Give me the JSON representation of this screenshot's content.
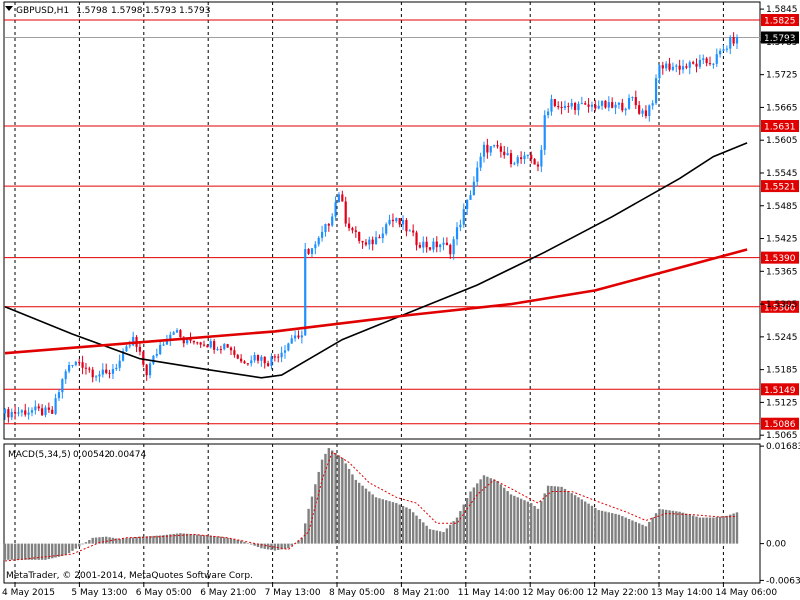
{
  "header": {
    "symbol": "GBPUSD,H1",
    "o": "1.5798",
    "h": "1.5798",
    "l": "1.5793",
    "c": "1.5793"
  },
  "macd_header": {
    "name": "MACD(5,34,5)",
    "value": "0.00542",
    "signal": "0.00474"
  },
  "copyright": "MetaTrader, © 2001-2014, MetaQuotes Software Corp.",
  "colors": {
    "bull": "#1e90ff",
    "bear": "#e0001a",
    "level": "#e00000",
    "ma_fast": "#000000",
    "ma_slow": "#e00000",
    "macd_hist": "#808080",
    "macd_signal": "#e00000",
    "price_line": "#a0a0a0"
  },
  "chart_data": [
    {
      "type": "candlestick",
      "title": "GBPUSD,H1",
      "ylim": [
        1.5058,
        1.5858
      ],
      "y_ticks": [
        "1.5845",
        "1.5785",
        "1.5725",
        "1.5665",
        "1.5605",
        "1.5545",
        "1.5485",
        "1.5425",
        "1.5365",
        "1.5305",
        "1.5245",
        "1.5185",
        "1.5125",
        "1.5065"
      ],
      "x_ticks": [
        "4 May 2015",
        "5 May 13:00",
        "6 May 05:00",
        "6 May 21:00",
        "7 May 13:00",
        "8 May 05:00",
        "8 May 21:00",
        "11 May 14:00",
        "12 May 06:00",
        "12 May 22:00",
        "13 May 14:00",
        "14 May 06:00"
      ],
      "current_price": "1.5793",
      "horizontal_levels": [
        "1.5825",
        "1.5631",
        "1.5521",
        "1.5390",
        "1.5300",
        "1.5149",
        "1.5086"
      ],
      "price_path": [
        [
          0,
          1.5105
        ],
        [
          8,
          1.511
        ],
        [
          14,
          1.5105
        ],
        [
          18,
          1.5185
        ],
        [
          22,
          1.52
        ],
        [
          26,
          1.518
        ],
        [
          30,
          1.5175
        ],
        [
          34,
          1.52
        ],
        [
          38,
          1.524
        ],
        [
          42,
          1.518
        ],
        [
          46,
          1.523
        ],
        [
          50,
          1.526
        ],
        [
          53,
          1.5235
        ],
        [
          56,
          1.524
        ],
        [
          62,
          1.523
        ],
        [
          66,
          1.523
        ],
        [
          70,
          1.52
        ],
        [
          74,
          1.521
        ],
        [
          78,
          1.52
        ],
        [
          82,
          1.522
        ],
        [
          86,
          1.525
        ],
        [
          88,
          1.524
        ],
        [
          89,
          1.54
        ],
        [
          92,
          1.541
        ],
        [
          96,
          1.5455
        ],
        [
          99,
          1.551
        ],
        [
          101,
          1.546
        ],
        [
          104,
          1.543
        ],
        [
          107,
          1.541
        ],
        [
          110,
          1.5425
        ],
        [
          114,
          1.546
        ],
        [
          118,
          1.545
        ],
        [
          122,
          1.542
        ],
        [
          126,
          1.541
        ],
        [
          129,
          1.5415
        ],
        [
          132,
          1.5405
        ],
        [
          134,
          1.544
        ],
        [
          137,
          1.549
        ],
        [
          140,
          1.555
        ],
        [
          142,
          1.559
        ],
        [
          145,
          1.559
        ],
        [
          150,
          1.557
        ],
        [
          156,
          1.557
        ],
        [
          158,
          1.556
        ],
        [
          159,
          1.558
        ],
        [
          160,
          1.565
        ],
        [
          162,
          1.568
        ],
        [
          165,
          1.566
        ],
        [
          168,
          1.567
        ],
        [
          172,
          1.5665
        ],
        [
          176,
          1.567
        ],
        [
          180,
          1.5665
        ],
        [
          184,
          1.567
        ],
        [
          186,
          1.568
        ],
        [
          188,
          1.566
        ],
        [
          190,
          1.5655
        ],
        [
          192,
          1.568
        ],
        [
          194,
          1.574
        ],
        [
          198,
          1.574
        ],
        [
          202,
          1.574
        ],
        [
          206,
          1.5745
        ],
        [
          210,
          1.575
        ],
        [
          213,
          1.577
        ],
        [
          215,
          1.5785
        ],
        [
          217,
          1.5793
        ]
      ],
      "ma_fast": [
        [
          0,
          1.53
        ],
        [
          20,
          1.525
        ],
        [
          40,
          1.5205
        ],
        [
          60,
          1.5185
        ],
        [
          76,
          1.517
        ],
        [
          82,
          1.5175
        ],
        [
          100,
          1.524
        ],
        [
          120,
          1.529
        ],
        [
          140,
          1.534
        ],
        [
          160,
          1.54
        ],
        [
          180,
          1.5465
        ],
        [
          200,
          1.5535
        ],
        [
          210,
          1.5575
        ],
        [
          220,
          1.56
        ]
      ],
      "ma_slow": [
        [
          0,
          1.5215
        ],
        [
          40,
          1.5235
        ],
        [
          80,
          1.5255
        ],
        [
          120,
          1.5285
        ],
        [
          150,
          1.5305
        ],
        [
          175,
          1.533
        ],
        [
          190,
          1.5355
        ],
        [
          205,
          1.538
        ],
        [
          220,
          1.5405
        ]
      ]
    },
    {
      "type": "histogram",
      "title": "MACD(5,34,5)",
      "ylim": [
        -0.0068,
        0.0172
      ],
      "y_ticks": [
        "0.01683",
        "0.00",
        "-0.00635"
      ],
      "bars": [
        [
          0,
          -0.0028
        ],
        [
          12,
          -0.0028
        ],
        [
          18,
          -0.002
        ],
        [
          22,
          -0.0005
        ],
        [
          26,
          0.001
        ],
        [
          30,
          0.0012
        ],
        [
          34,
          0.0008
        ],
        [
          40,
          0.0012
        ],
        [
          46,
          0.0014
        ],
        [
          52,
          0.0018
        ],
        [
          58,
          0.0015
        ],
        [
          64,
          0.0012
        ],
        [
          70,
          0.0005
        ],
        [
          76,
          -0.0008
        ],
        [
          80,
          -0.0012
        ],
        [
          84,
          -0.0008
        ],
        [
          88,
          0.001
        ],
        [
          90,
          0.006
        ],
        [
          94,
          0.0145
        ],
        [
          96,
          0.0165
        ],
        [
          100,
          0.0148
        ],
        [
          104,
          0.011
        ],
        [
          110,
          0.008
        ],
        [
          116,
          0.007
        ],
        [
          120,
          0.006
        ],
        [
          126,
          0.0025
        ],
        [
          130,
          0.002
        ],
        [
          134,
          0.0045
        ],
        [
          138,
          0.009
        ],
        [
          142,
          0.0118
        ],
        [
          146,
          0.0108
        ],
        [
          150,
          0.0085
        ],
        [
          156,
          0.007
        ],
        [
          158,
          0.006
        ],
        [
          161,
          0.01
        ],
        [
          165,
          0.0098
        ],
        [
          170,
          0.008
        ],
        [
          176,
          0.0058
        ],
        [
          182,
          0.005
        ],
        [
          186,
          0.004
        ],
        [
          190,
          0.003
        ],
        [
          194,
          0.006
        ],
        [
          200,
          0.0055
        ],
        [
          206,
          0.0045
        ],
        [
          210,
          0.0045
        ],
        [
          214,
          0.0048
        ],
        [
          217,
          0.0054
        ]
      ],
      "signal": [
        [
          0,
          -0.003
        ],
        [
          20,
          -0.0018
        ],
        [
          28,
          0.0002
        ],
        [
          36,
          0.001
        ],
        [
          46,
          0.0012
        ],
        [
          56,
          0.0016
        ],
        [
          66,
          0.001
        ],
        [
          76,
          -0.0002
        ],
        [
          84,
          -0.001
        ],
        [
          90,
          0.002
        ],
        [
          94,
          0.011
        ],
        [
          97,
          0.0158
        ],
        [
          102,
          0.014
        ],
        [
          108,
          0.0105
        ],
        [
          116,
          0.008
        ],
        [
          122,
          0.007
        ],
        [
          128,
          0.0035
        ],
        [
          134,
          0.0035
        ],
        [
          140,
          0.0085
        ],
        [
          145,
          0.011
        ],
        [
          150,
          0.0095
        ],
        [
          158,
          0.007
        ],
        [
          162,
          0.009
        ],
        [
          168,
          0.009
        ],
        [
          176,
          0.0072
        ],
        [
          184,
          0.0055
        ],
        [
          190,
          0.004
        ],
        [
          196,
          0.0052
        ],
        [
          204,
          0.005
        ],
        [
          212,
          0.0046
        ],
        [
          217,
          0.0047
        ]
      ]
    }
  ]
}
